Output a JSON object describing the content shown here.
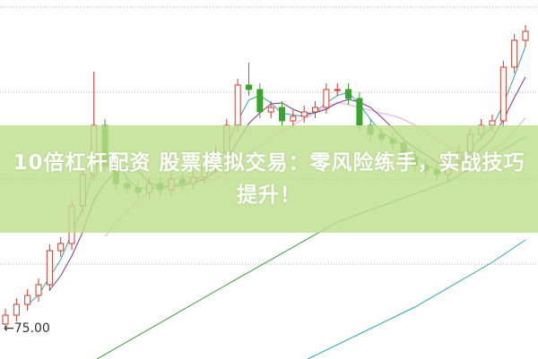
{
  "banner": {
    "title": "10倍杠杆配资 股票模拟交易：零风险练手，实战技巧提升！"
  },
  "price_marker": {
    "label": "←75.00"
  },
  "colors": {
    "up": "#d03a2a",
    "down": "#3aa52a",
    "grid": "#aaaaaa",
    "ma5": "#2aa8a0",
    "ma10": "#7a3a8a",
    "ma20": "#e8a8e0",
    "ma_green": "#3a9a3a",
    "ma_cyan": "#2aa8b0"
  },
  "chart_data": {
    "type": "candlestick",
    "title": "",
    "xlabel": "",
    "ylabel": "",
    "ylim": [
      71.5,
      109.8
    ],
    "grid": true,
    "annotations": [
      "75.00"
    ],
    "open": [
      75.6,
      76.6,
      77.8,
      78.8,
      80.0,
      83.8,
      84.6,
      88.8,
      92.3,
      97.8,
      93.3,
      91.3,
      90.8,
      90.3,
      91.3,
      90.6,
      91.8,
      91.3,
      92.0,
      93.3,
      94.8,
      97.8,
      102.3,
      101.8,
      99.3,
      99.8,
      98.3,
      98.8,
      99.3,
      99.8,
      101.8,
      101.8,
      100.8,
      97.8,
      96.8,
      96.3,
      95.8,
      94.3,
      93.3,
      92.8,
      92.3,
      93.8,
      94.8,
      96.8,
      97.8,
      98.3,
      104.3,
      107.3
    ],
    "close": [
      76.6,
      77.8,
      78.8,
      80.0,
      83.8,
      84.6,
      88.8,
      92.3,
      97.8,
      93.3,
      91.3,
      90.8,
      90.3,
      91.3,
      90.6,
      91.8,
      91.3,
      92.0,
      93.3,
      94.8,
      97.8,
      102.3,
      101.8,
      99.3,
      99.8,
      98.3,
      98.8,
      99.3,
      99.8,
      101.8,
      101.8,
      100.8,
      97.8,
      96.8,
      96.3,
      95.8,
      94.3,
      93.3,
      92.8,
      92.3,
      93.8,
      94.8,
      96.8,
      97.8,
      98.3,
      104.3,
      107.3,
      108.3
    ],
    "high": [
      77.3,
      78.5,
      79.5,
      80.7,
      84.5,
      85.3,
      89.5,
      93.0,
      103.8,
      98.5,
      94.0,
      92.0,
      91.5,
      92.0,
      92.0,
      92.5,
      92.5,
      92.7,
      94.0,
      95.5,
      98.5,
      103.0,
      104.8,
      102.5,
      100.5,
      100.5,
      99.5,
      100.0,
      100.5,
      102.5,
      102.5,
      102.5,
      101.5,
      98.5,
      97.5,
      97.0,
      96.5,
      95.0,
      94.0,
      93.5,
      94.5,
      95.5,
      97.5,
      98.5,
      99.0,
      105.0,
      108.0,
      109.0
    ],
    "low": [
      74.9,
      75.9,
      77.1,
      78.1,
      79.3,
      83.1,
      83.9,
      88.1,
      91.6,
      92.6,
      90.6,
      90.1,
      89.6,
      89.6,
      89.9,
      89.9,
      90.6,
      90.6,
      91.3,
      92.6,
      94.1,
      97.1,
      101.1,
      98.6,
      98.6,
      97.6,
      97.6,
      98.1,
      98.6,
      99.1,
      101.1,
      100.1,
      97.1,
      96.1,
      95.6,
      95.1,
      93.6,
      92.6,
      92.1,
      91.6,
      91.6,
      93.1,
      94.1,
      96.1,
      97.1,
      97.6,
      103.6,
      106.6
    ],
    "long_ma": [
      {
        "color_key": "ma_green",
        "points": [
          [
            8,
            71.5
          ],
          [
            20,
            80.0
          ],
          [
            30,
            87.0
          ],
          [
            40,
            91.5
          ],
          [
            47,
            96.5
          ]
        ]
      },
      {
        "color_key": "ma_cyan",
        "points": [
          [
            27,
            71.5
          ],
          [
            37,
            77.5
          ],
          [
            44,
            82.5
          ],
          [
            47,
            85.0
          ]
        ]
      }
    ]
  }
}
